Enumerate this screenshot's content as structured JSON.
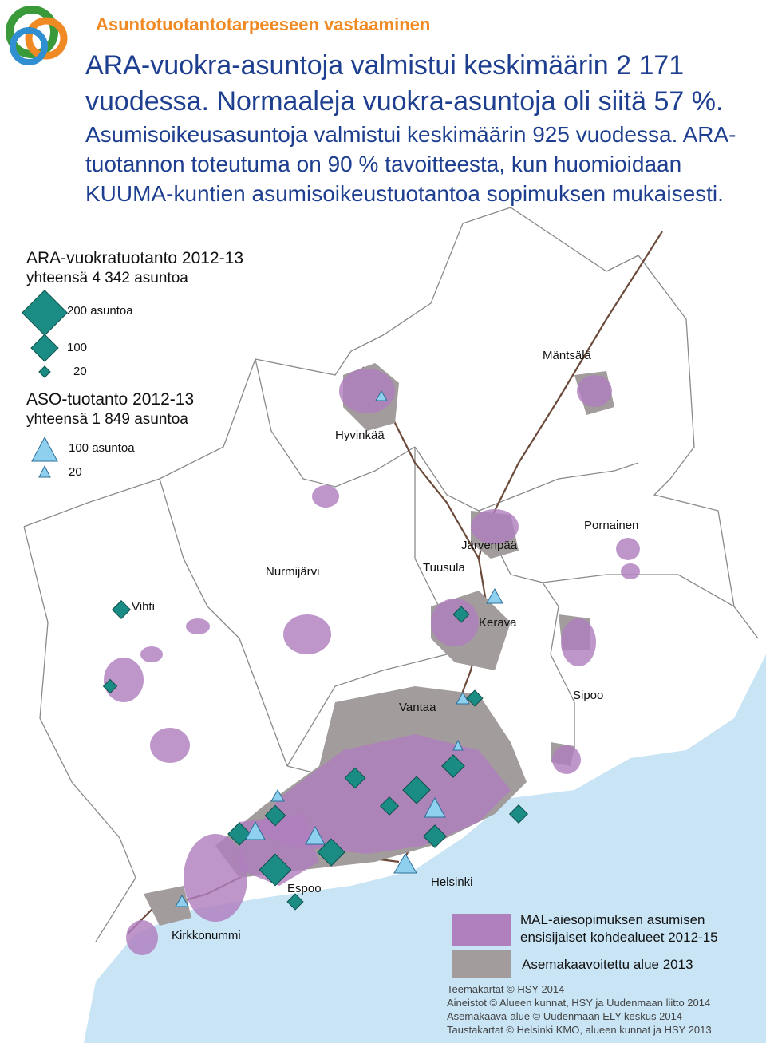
{
  "header": {
    "title": "Asuntotuotantotarpeeseen vastaaminen"
  },
  "intro": {
    "lead": "ARA-vuokra-asuntoja valmistui keskimäärin 2 171 vuodessa. Normaaleja vuokra-asuntoja oli siitä 57 %.",
    "rest": "Asumisoikeusasuntoja valmistui keskimäärin 925 vuodessa. ARA-tuotannon toteutuma on 90 % tavoitteesta, kun huomioidaan KUUMA-kuntien asumisoikeustuotantoa sopimuksen mukaisesti."
  },
  "legend": {
    "ara": {
      "title": "ARA-vuokratuotanto 2012-13",
      "total": "yhteensä 4 342 asuntoa",
      "sizes": [
        "200 asuntoa",
        "100",
        "20"
      ]
    },
    "aso": {
      "title": "ASO-tuotanto 2012-13",
      "total": "yhteensä 1 849 asuntoa",
      "sizes": [
        "100 asuntoa",
        "20"
      ]
    }
  },
  "places": [
    "Mäntsälä",
    "Hyvinkää",
    "Pornainen",
    "Järvenpää",
    "Tuusula",
    "Nurmijärvi",
    "Vihti",
    "Kerava",
    "Vantaa",
    "Sipoo",
    "Espoo",
    "Helsinki",
    "Kirkkonummi"
  ],
  "map_legend": [
    "MAL-aiesopimuksen asumisen ensisijaiset kohdealueet 2012-15",
    "Asemakaavoitettu alue 2013"
  ],
  "credits": [
    "Teemakartat © HSY 2014",
    "Aineistot © Alueen kunnat, HSY ja Uudenmaan liitto 2014",
    "Asemakaava-alue © Uudenmaan ELY-keskus 2014",
    "Taustakartat © Helsinki KMO, alueen kunnat ja HSY 2013"
  ]
}
